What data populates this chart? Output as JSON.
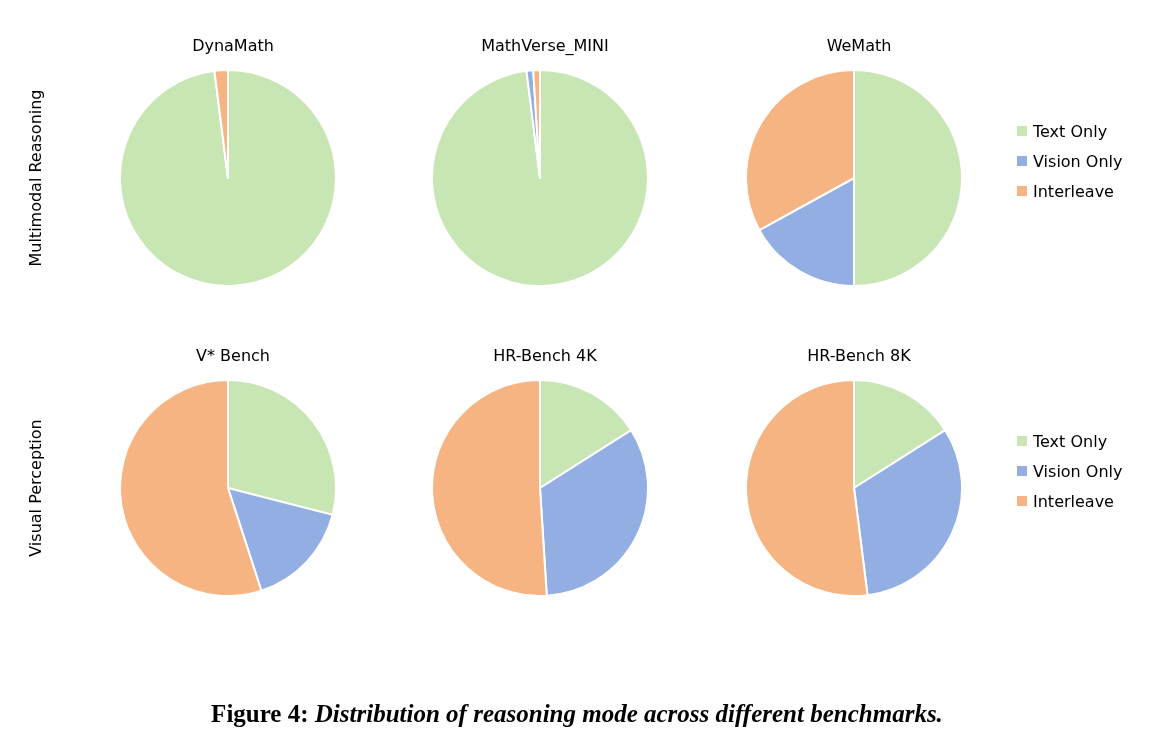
{
  "chart_data": [
    {
      "type": "pie",
      "title": "DynaMath",
      "ylabel": "Multimodal Reasoning",
      "categories": [
        null,
        null,
        null
      ],
      "values": [
        98,
        0,
        2
      ],
      "colors": [
        "#c8e6b4",
        "#93aee2",
        "#f5b482"
      ]
    },
    {
      "type": "pie",
      "title": "MathVerse_MINI",
      "categories": [
        null,
        null,
        null
      ],
      "values": [
        98,
        1,
        1
      ],
      "colors": [
        "#c8e6b4",
        "#93aee2",
        "#f5b482"
      ]
    },
    {
      "type": "pie",
      "title": "WeMath",
      "categories": [
        "Text Only",
        "Vision Only",
        "Interleave"
      ],
      "values": [
        50,
        17,
        33
      ],
      "colors": [
        "#c8e6b4",
        "#93aee2",
        "#f5b482"
      ],
      "legend": "right"
    },
    {
      "type": "pie",
      "title": "V* Bench",
      "ylabel": "Visual Perception",
      "categories": [
        null,
        null,
        null
      ],
      "values": [
        29,
        16,
        55
      ],
      "colors": [
        "#c8e6b4",
        "#93aee2",
        "#f5b482"
      ]
    },
    {
      "type": "pie",
      "title": "HR-Bench 4K",
      "categories": [
        null,
        null,
        null
      ],
      "values": [
        16,
        33,
        51
      ],
      "colors": [
        "#c8e6b4",
        "#93aee2",
        "#f5b482"
      ]
    },
    {
      "type": "pie",
      "title": "HR-Bench 8K",
      "categories": [
        "Text Only",
        "Vision Only",
        "Interleave"
      ],
      "values": [
        16,
        32,
        52
      ],
      "colors": [
        "#c8e6b4",
        "#93aee2",
        "#f5b482"
      ],
      "legend": "right",
      "annotations": [
        "Figure 4: Distribution of reasoning mode across different benchmarks."
      ]
    }
  ]
}
